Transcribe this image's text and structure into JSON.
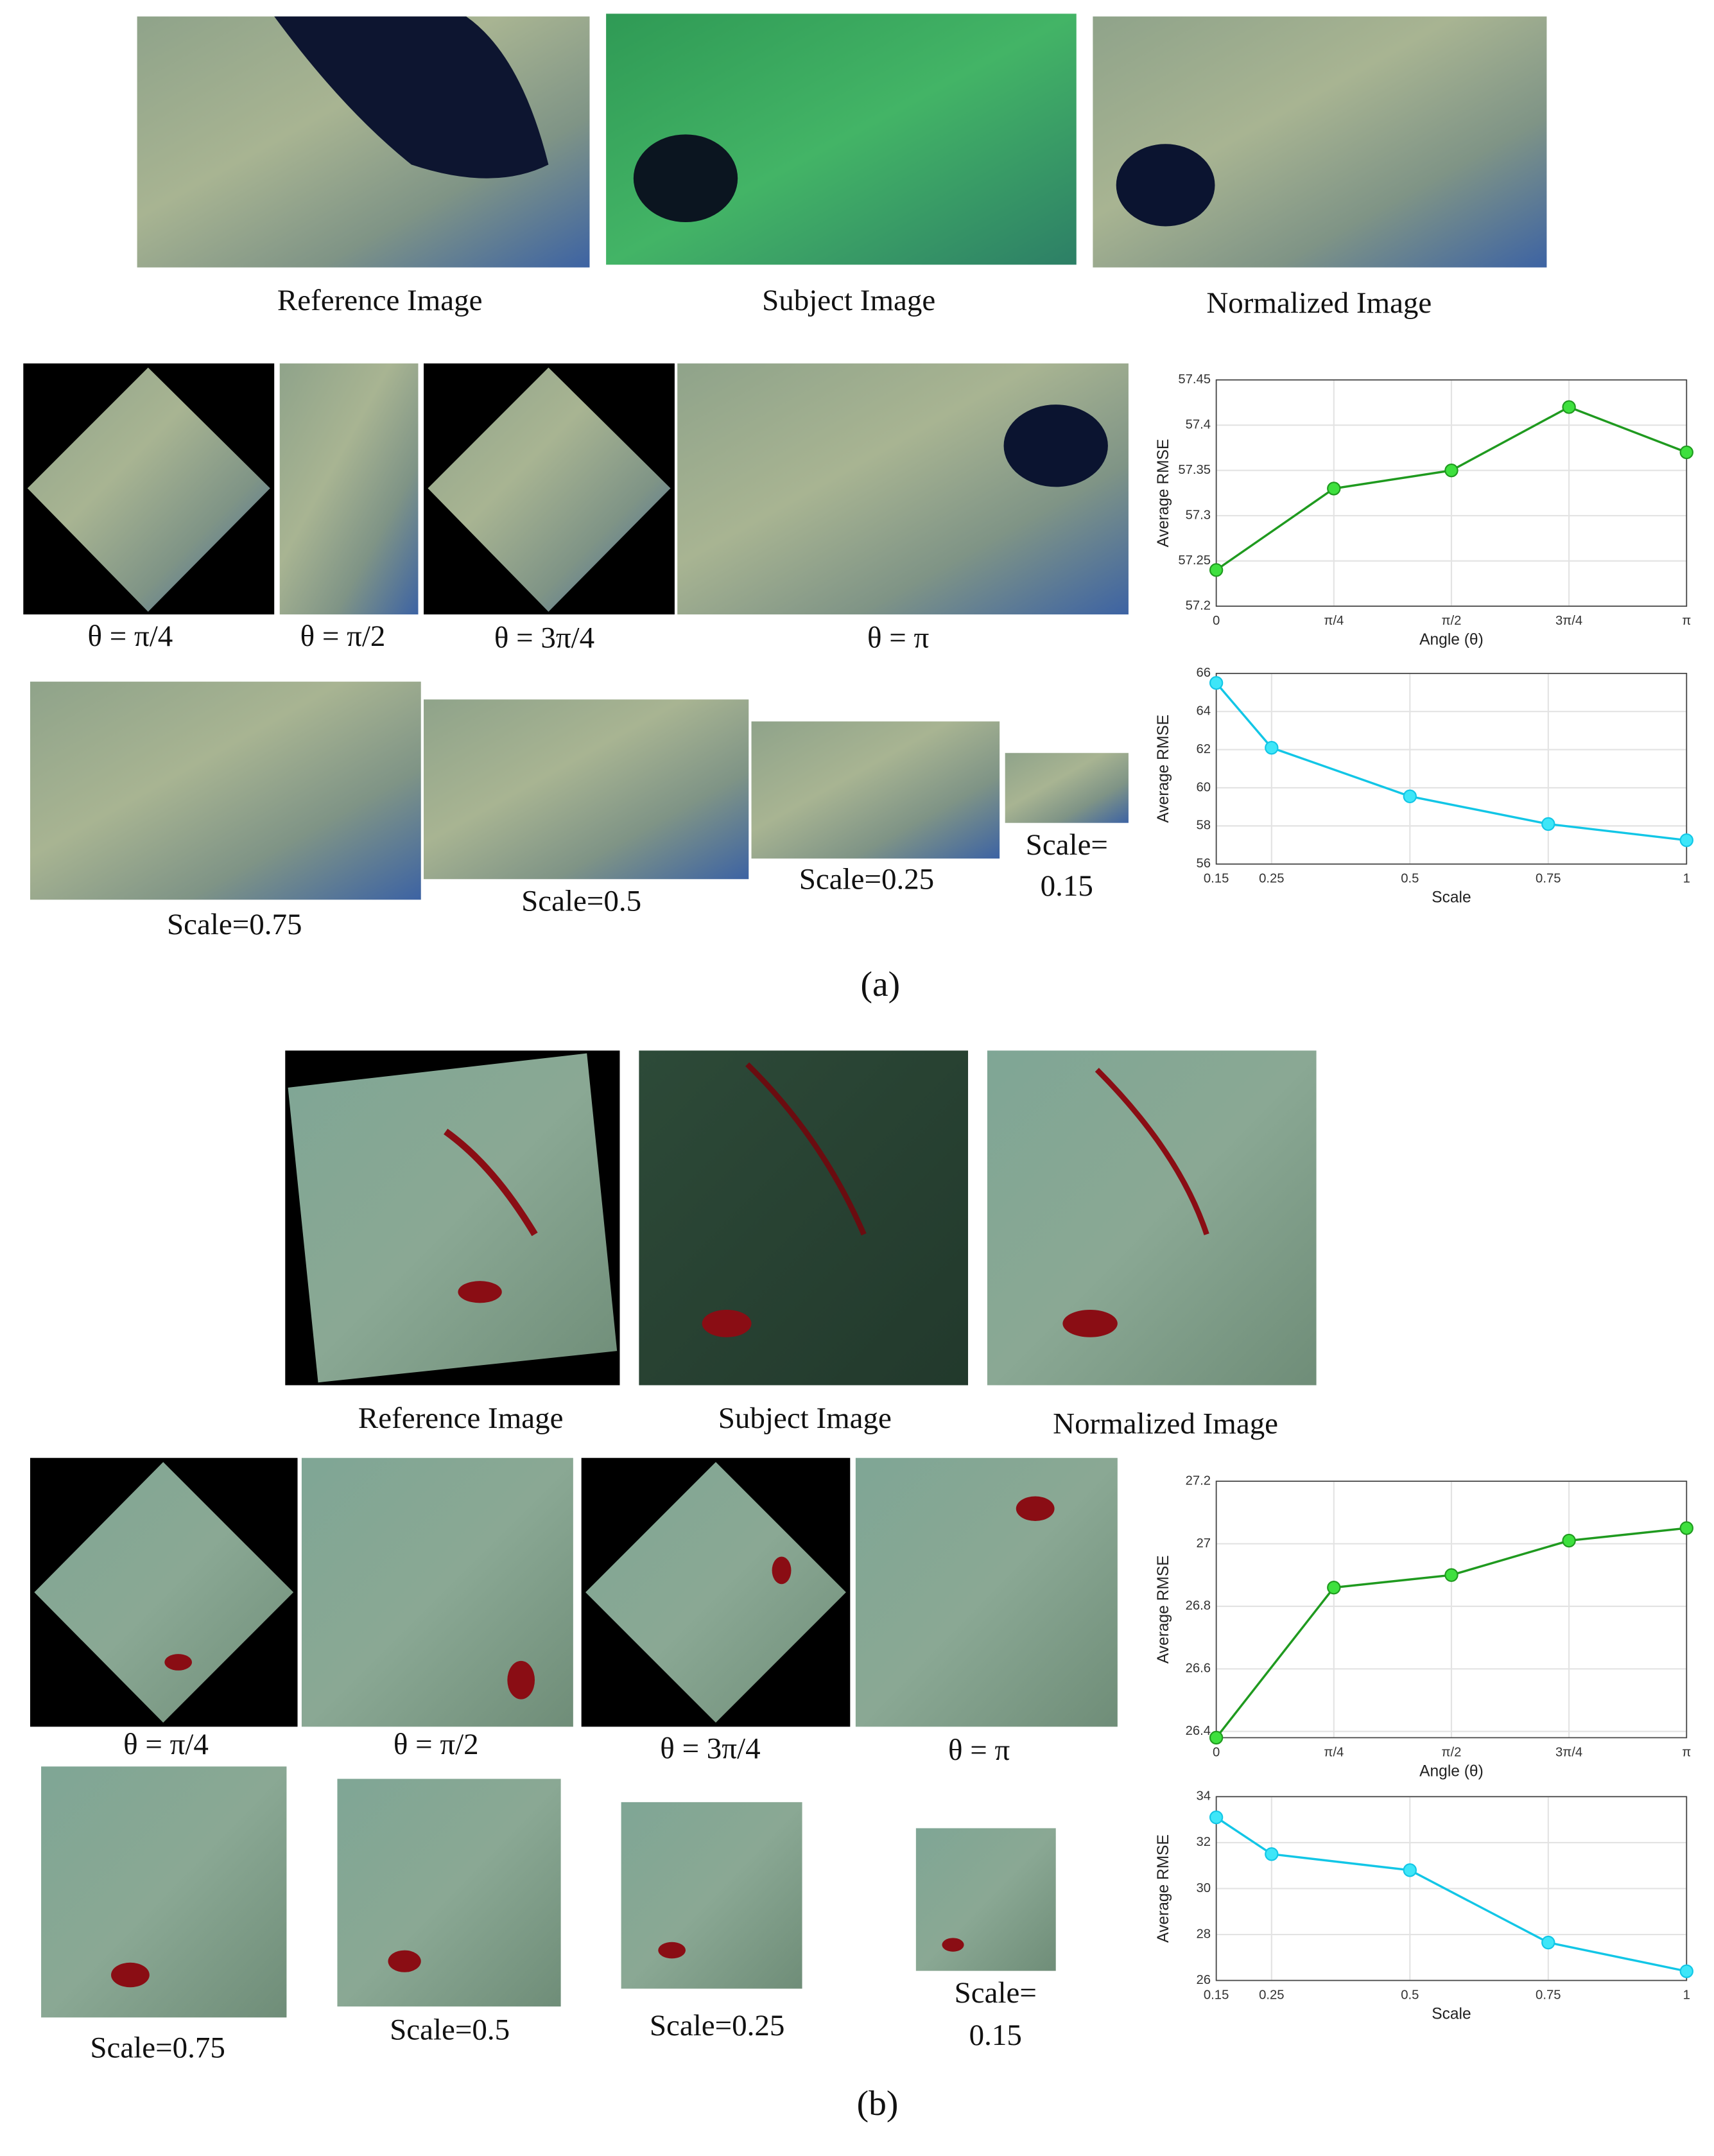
{
  "figure": {
    "a": {
      "label": "(a)",
      "top_captions": [
        "Reference Image",
        "Subject Image",
        "Normalized Image"
      ],
      "rotation_captions": [
        "θ = π/4",
        "θ = π/2",
        "θ = 3π/4",
        "θ = π"
      ],
      "scale_captions": [
        "Scale=0.75",
        "Scale=0.5",
        "Scale=0.25"
      ],
      "scale_small_caption": [
        "Scale=",
        "0.15"
      ]
    },
    "b": {
      "label": "(b)",
      "top_captions": [
        "Reference Image",
        "Subject Image",
        "Normalized Image"
      ],
      "rotation_captions": [
        "θ = π/4",
        "θ = π/2",
        "θ = 3π/4",
        "θ = π"
      ],
      "scale_captions": [
        "Scale=0.75",
        "Scale=0.5",
        "Scale=0.25"
      ],
      "scale_small_caption": [
        "Scale=",
        "0.15"
      ]
    }
  },
  "chart_data": [
    {
      "type": "line",
      "xlabel": "Angle (θ)",
      "ylabel": "Average RMSE",
      "categories": [
        "0",
        "π/4",
        "π/2",
        "3π/4",
        "π"
      ],
      "values": [
        57.24,
        57.33,
        57.35,
        57.42,
        57.37
      ],
      "color": "#1f9a1f",
      "marker_color": "#3ee03e",
      "ylim": [
        57.2,
        57.45
      ],
      "yticks": [
        57.2,
        57.25,
        57.3,
        57.35,
        57.4,
        57.45
      ],
      "grid": true
    },
    {
      "type": "line",
      "xlabel": "Scale",
      "ylabel": "Average RMSE",
      "x": [
        0.15,
        0.25,
        0.5,
        0.75,
        1
      ],
      "values": [
        65.5,
        62.1,
        59.55,
        58.1,
        57.25
      ],
      "color": "#12c6e6",
      "marker_color": "#3ee6f8",
      "xlim": [
        0.15,
        1
      ],
      "xticks": [
        0.15,
        0.25,
        0.5,
        0.75,
        1
      ],
      "ylim": [
        56,
        66
      ],
      "yticks": [
        56,
        58,
        60,
        62,
        64,
        66
      ],
      "grid": true
    },
    {
      "type": "line",
      "xlabel": "Angle (θ)",
      "ylabel": "Average RMSE",
      "categories": [
        "0",
        "π/4",
        "π/2",
        "3π/4",
        "π"
      ],
      "values": [
        26.38,
        26.86,
        26.9,
        27.01,
        27.05
      ],
      "color": "#1f9a1f",
      "marker_color": "#3ee03e",
      "ylim": [
        26.38,
        27.2
      ],
      "yticks": [
        26.4,
        26.6,
        26.8,
        27,
        27.2
      ],
      "grid": true
    },
    {
      "type": "line",
      "xlabel": "Scale",
      "ylabel": "Average RMSE",
      "x": [
        0.15,
        0.25,
        0.5,
        0.75,
        1
      ],
      "values": [
        33.1,
        31.5,
        30.8,
        27.65,
        26.4
      ],
      "color": "#12c6e6",
      "marker_color": "#3ee6f8",
      "xlim": [
        0.15,
        1
      ],
      "xticks": [
        0.15,
        0.25,
        0.5,
        0.75,
        1
      ],
      "ylim": [
        26,
        34
      ],
      "yticks": [
        26,
        28,
        30,
        32,
        34
      ],
      "grid": true
    }
  ]
}
